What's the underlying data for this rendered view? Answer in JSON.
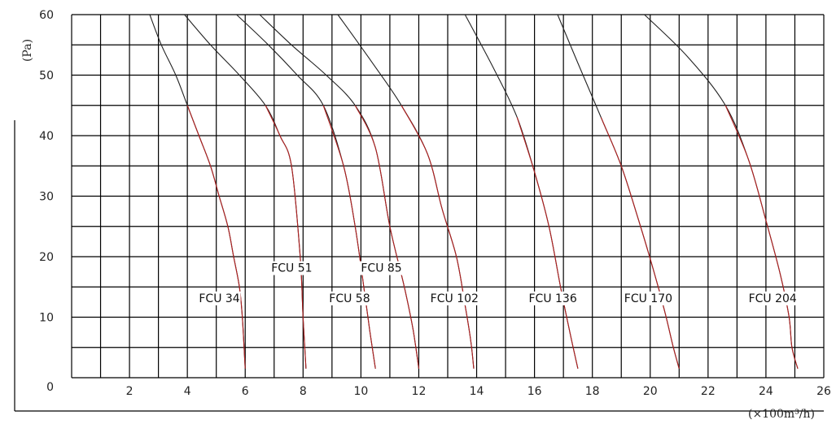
{
  "chart_data": {
    "type": "line",
    "ylabel": "(Pa)",
    "xlabel": "(×100m³/h)",
    "xlim": [
      0,
      26
    ],
    "ylim": [
      0,
      60
    ],
    "x_ticks": [
      2,
      4,
      6,
      8,
      10,
      12,
      14,
      16,
      18,
      20,
      22,
      24,
      26
    ],
    "y_ticks": [
      0,
      10,
      20,
      30,
      40,
      50,
      60
    ],
    "grid": true,
    "colors": {
      "curve": "#222222",
      "curve_highlight": "#b02020",
      "grid": "#000000"
    },
    "series": [
      {
        "name": "FCU 34",
        "x": [
          2.7,
          3.1,
          3.6,
          4.0,
          4.4,
          4.8,
          5.1,
          5.4,
          5.6,
          5.8,
          5.9,
          6.0
        ],
        "y": [
          60,
          55,
          50,
          45,
          40,
          35,
          30,
          25,
          20,
          15,
          10,
          1.5
        ]
      },
      {
        "name": "FCU 51",
        "x": [
          3.9,
          4.8,
          5.8,
          6.7,
          7.2,
          7.6,
          7.9,
          8.0,
          8.1
        ],
        "y": [
          60,
          55,
          50,
          45,
          40,
          35,
          20,
          10,
          1.5
        ]
      },
      {
        "name": "FCU 58",
        "x": [
          5.7,
          6.8,
          7.8,
          8.7,
          9.4,
          9.8,
          10.1,
          10.3,
          10.5
        ],
        "y": [
          60,
          55,
          50,
          45,
          35,
          25,
          15,
          8,
          1.5
        ]
      },
      {
        "name": "FCU 85",
        "x": [
          6.5,
          7.6,
          8.8,
          9.8,
          10.5,
          11.0,
          11.5,
          11.8,
          12.0
        ],
        "y": [
          60,
          55,
          50,
          45,
          38,
          25,
          15,
          8,
          1.5
        ]
      },
      {
        "name": "FCU 102",
        "x": [
          9.2,
          10.4,
          11.4,
          12.3,
          12.8,
          13.3,
          13.6,
          13.8,
          13.9
        ],
        "y": [
          60,
          52,
          45,
          37,
          28,
          20,
          12,
          6,
          1.5
        ]
      },
      {
        "name": "FCU 136",
        "x": [
          13.6,
          14.6,
          15.4,
          16.0,
          16.5,
          16.9,
          17.2,
          17.5
        ],
        "y": [
          60,
          51,
          43,
          34,
          25,
          15,
          8,
          1.5
        ]
      },
      {
        "name": "FCU 170",
        "x": [
          16.8,
          17.5,
          18.3,
          19.0,
          19.6,
          20.1,
          20.5,
          20.8,
          21.0
        ],
        "y": [
          60,
          52,
          43,
          35,
          26,
          18,
          11,
          5,
          1.5
        ]
      },
      {
        "name": "FCU 204",
        "x": [
          19.8,
          21.3,
          22.6,
          23.4,
          24.0,
          24.5,
          24.8,
          24.9,
          25.1
        ],
        "y": [
          60,
          53,
          45,
          36,
          26,
          17,
          10,
          5,
          1.5
        ]
      }
    ],
    "curve_labels": [
      {
        "text": "FCU 34",
        "x": 4.4,
        "y": 12.5
      },
      {
        "text": "FCU 51",
        "x": 6.9,
        "y": 17.5
      },
      {
        "text": "FCU 58",
        "x": 8.9,
        "y": 12.5
      },
      {
        "text": "FCU 85",
        "x": 10.0,
        "y": 17.5
      },
      {
        "text": "FCU 102",
        "x": 12.4,
        "y": 12.5
      },
      {
        "text": "FCU 136",
        "x": 15.8,
        "y": 12.5
      },
      {
        "text": "FCU 170",
        "x": 19.1,
        "y": 12.5
      },
      {
        "text": "FCU 204",
        "x": 23.4,
        "y": 12.5
      }
    ]
  }
}
